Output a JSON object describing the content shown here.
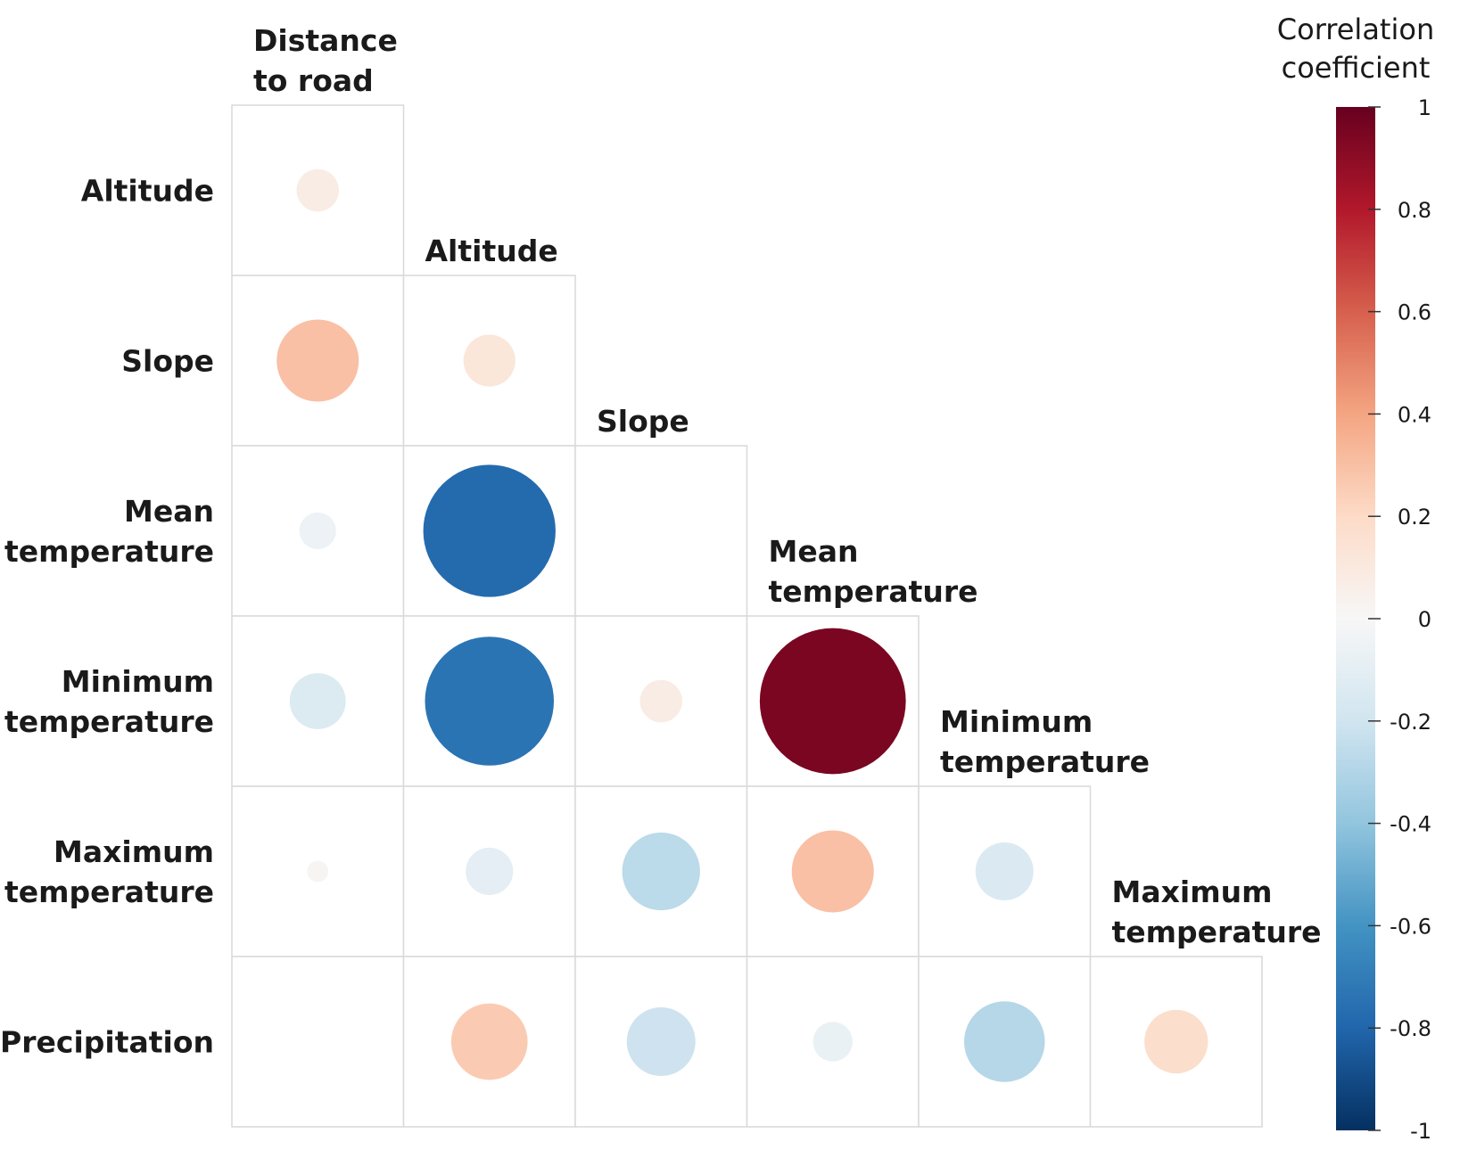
{
  "chart_data": {
    "type": "correlation-matrix",
    "variables": [
      "Distance to road",
      "Altitude",
      "Slope",
      "Mean temperature",
      "Minimum temperature",
      "Maximum temperature",
      "Precipitation"
    ],
    "column_labels": [
      [
        "Distance",
        "to road"
      ],
      [
        "Altitude"
      ],
      [
        "Slope"
      ],
      [
        "Mean",
        "temperature"
      ],
      [
        "Minimum",
        "temperature"
      ],
      [
        "Maximum",
        "temperature"
      ]
    ],
    "row_labels": [
      [
        "Altitude"
      ],
      [
        "Slope"
      ],
      [
        "Mean",
        "temperature"
      ],
      [
        "Minimum",
        "temperature"
      ],
      [
        "Maximum",
        "temperature"
      ],
      [
        "Precipitation"
      ]
    ],
    "values": [
      [
        0.08
      ],
      [
        0.3,
        0.12
      ],
      [
        -0.06,
        -0.78,
        0.0
      ],
      [
        -0.14,
        -0.74,
        0.08,
        0.95
      ],
      [
        0.02,
        -0.1,
        -0.27,
        0.3,
        -0.15
      ],
      [
        0.0,
        0.26,
        -0.21,
        -0.07,
        -0.29,
        0.18
      ]
    ],
    "legend": {
      "title": [
        "Correlation",
        "coefficient"
      ],
      "ticks": [
        1,
        0.8,
        0.6,
        0.4,
        0.2,
        0,
        -0.2,
        -0.4,
        -0.6,
        -0.8,
        -1
      ],
      "tick_labels": [
        "1",
        "0.8",
        "0.6",
        "0.4",
        "0.2",
        "0",
        "-0.2",
        "-0.4",
        "-0.6",
        "-0.8",
        "-1"
      ],
      "range": [
        -1,
        1
      ],
      "position": "right"
    },
    "colormap": [
      {
        "v": -1.0,
        "color": "#053061"
      },
      {
        "v": -0.8,
        "color": "#2166ac"
      },
      {
        "v": -0.6,
        "color": "#4393c3"
      },
      {
        "v": -0.4,
        "color": "#92c5de"
      },
      {
        "v": -0.2,
        "color": "#d1e5f0"
      },
      {
        "v": 0.0,
        "color": "#f7f7f7"
      },
      {
        "v": 0.2,
        "color": "#fddbc7"
      },
      {
        "v": 0.4,
        "color": "#f4a582"
      },
      {
        "v": 0.6,
        "color": "#d6604d"
      },
      {
        "v": 0.8,
        "color": "#b2182b"
      },
      {
        "v": 1.0,
        "color": "#67001f"
      }
    ]
  }
}
